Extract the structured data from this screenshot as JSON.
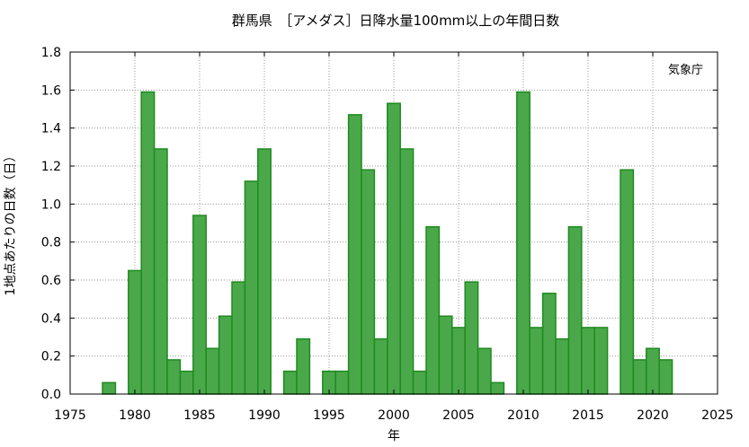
{
  "chart_data": {
    "type": "bar",
    "title": "群馬県　［アメダス］日降水量100mm以上の年間日数",
    "xlabel": "年",
    "ylabel": "1地点あたりの日数（日）",
    "credit": "気象庁",
    "xlim": [
      1975,
      2025
    ],
    "ylim": [
      0,
      1.8
    ],
    "xticks": [
      "1975",
      "1980",
      "1985",
      "1990",
      "1995",
      "2000",
      "2005",
      "2010",
      "2015",
      "2020",
      "2025"
    ],
    "yticks": [
      "0.0",
      "0.2",
      "0.4",
      "0.6",
      "0.8",
      "1.0",
      "1.2",
      "1.4",
      "1.6",
      "1.8"
    ],
    "grid": true,
    "bar_color": "#4aa84a",
    "bar_edge_color": "#1f8a1f",
    "x": [
      1976,
      1977,
      1978,
      1979,
      1980,
      1981,
      1982,
      1983,
      1984,
      1985,
      1986,
      1987,
      1988,
      1989,
      1990,
      1991,
      1992,
      1993,
      1994,
      1995,
      1996,
      1997,
      1998,
      1999,
      2000,
      2001,
      2002,
      2003,
      2004,
      2005,
      2006,
      2007,
      2008,
      2009,
      2010,
      2011,
      2012,
      2013,
      2014,
      2015,
      2016,
      2017,
      2018,
      2019,
      2020,
      2021,
      2022
    ],
    "values": [
      0,
      0,
      0.06,
      0,
      0.65,
      1.59,
      1.29,
      0.18,
      0.12,
      0.94,
      0.24,
      0.41,
      0.59,
      1.12,
      1.29,
      0,
      0.12,
      0.29,
      0,
      0.12,
      0.12,
      1.47,
      1.18,
      0.29,
      1.53,
      1.29,
      0.12,
      0.88,
      0.41,
      0.35,
      0.59,
      0.24,
      0.06,
      0,
      1.59,
      0.35,
      0.53,
      0.29,
      0.88,
      0.35,
      0.35,
      0,
      1.18,
      0.18,
      0.24,
      0.18,
      0
    ]
  }
}
